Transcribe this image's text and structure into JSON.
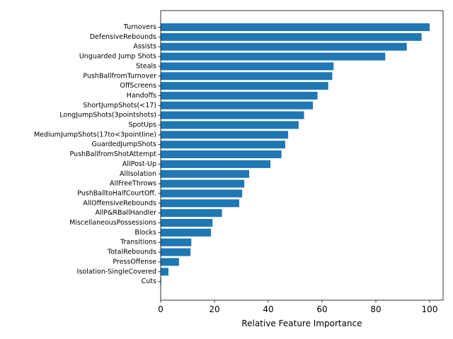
{
  "chart_data": {
    "type": "bar",
    "orientation": "horizontal",
    "xlabel": "Relative Feature Importance",
    "ylabel": "",
    "title": "",
    "xlim": [
      0,
      105
    ],
    "xticks": [
      0,
      20,
      40,
      60,
      80,
      100
    ],
    "grid": false,
    "bar_color": "#1f77b4",
    "categories": [
      "Turnovers",
      "DefensiveRebounds",
      "Assists",
      "Unguarded Jump Shots",
      "Steals",
      "PushBallfromTurnover",
      "OffScreens",
      "Handoffs",
      "ShortJumpShots(<17)",
      "LongJumpShots(3pointshots)",
      "SpotUps",
      "MediumJumpShots(17to<3pointline)",
      "GuardedJumpShots",
      "PushBallfromShotAttempt",
      "AllPost-Up",
      "AllIsolation",
      "AllFreeThrows",
      "PushBalltoHalfCourtOff.",
      "AllOffensiveRebounds",
      "AllP&RBallHandler",
      "MiscellaneousPossessions",
      "Blocks",
      "Transitions",
      "TotalRebounds",
      "PressOffense",
      "Isolation-SingleCovered",
      "Cuts"
    ],
    "values": [
      100,
      97,
      91.5,
      83.5,
      64.3,
      63.8,
      62.3,
      58.3,
      56.6,
      53.3,
      51.3,
      47.4,
      46.3,
      44.9,
      40.8,
      32.9,
      31.1,
      30.3,
      29.2,
      22.8,
      19.3,
      18.7,
      11.4,
      11.1,
      6.8,
      2.9,
      0.2
    ]
  }
}
